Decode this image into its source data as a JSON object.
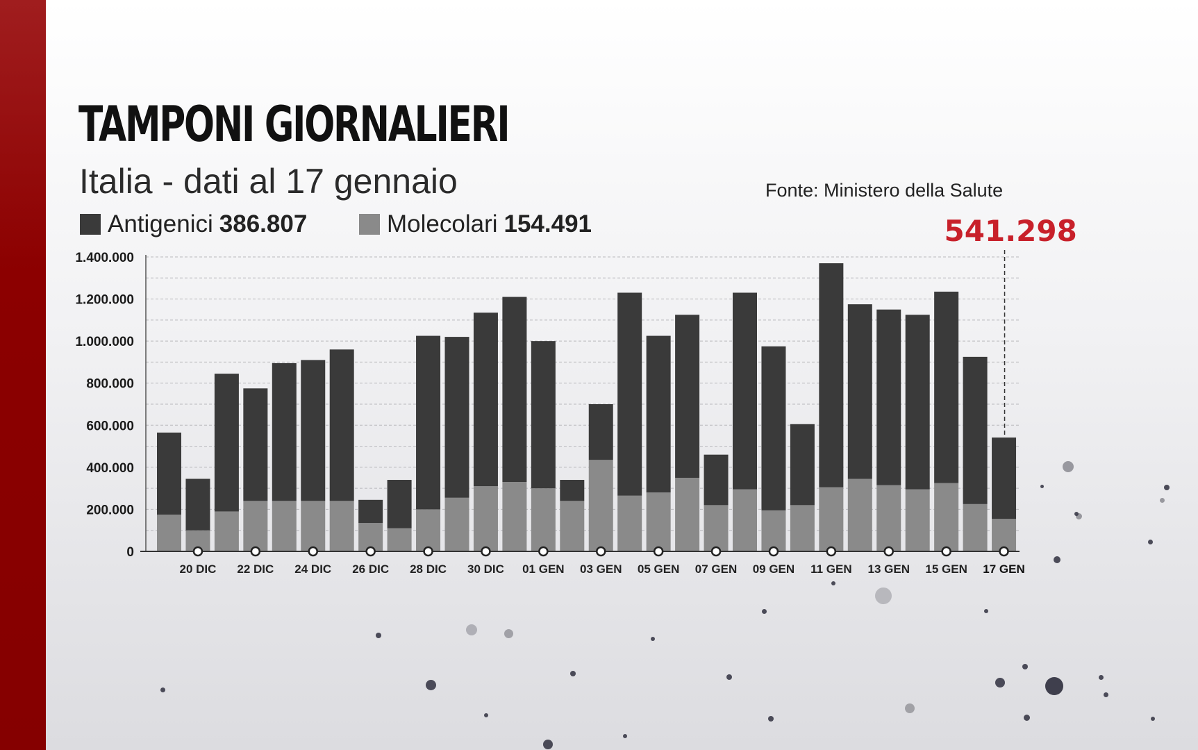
{
  "title": "TAMPONI GIORNALIERI",
  "subtitle": "Italia - dati al 17 gennaio",
  "source": "Fonte: Ministero della Salute",
  "highlight_total": "541.298",
  "legend": [
    {
      "label": "Antigenici",
      "value": "386.807",
      "color": "#3a3a3a"
    },
    {
      "label": "Molecolari",
      "value": "154.491",
      "color": "#8a8a8a"
    }
  ],
  "colors": {
    "accent": "#c8202a",
    "brand_red": "#8c0000",
    "antigenici": "#3a3a3a",
    "molecolari": "#8a8a8a"
  },
  "chart_data": {
    "type": "bar",
    "stacked": true,
    "title": "TAMPONI GIORNALIERI",
    "subtitle": "Italia - dati al 17 gennaio",
    "ylim": [
      0,
      1400000
    ],
    "ytick_values": [
      0,
      200000,
      400000,
      600000,
      800000,
      1000000,
      1200000,
      1400000
    ],
    "ytick_labels": [
      "0",
      "200.000",
      "400.000",
      "600.000",
      "800.000",
      "1.000.000",
      "1.200.000",
      "1.400.000"
    ],
    "xtick_labels": [
      "",
      "20 DIC",
      "",
      "22 DIC",
      "",
      "24 DIC",
      "",
      "26 DIC",
      "",
      "28 DIC",
      "",
      "30 DIC",
      "",
      "01 GEN",
      "",
      "03 GEN",
      "",
      "05 GEN",
      "",
      "07 GEN",
      "",
      "09 GEN",
      "",
      "11 GEN",
      "",
      "13 GEN",
      "",
      "15 GEN",
      "",
      "17 GEN"
    ],
    "categories": [
      "19 DIC",
      "20 DIC",
      "21 DIC",
      "22 DIC",
      "23 DIC",
      "24 DIC",
      "25 DIC",
      "26 DIC",
      "27 DIC",
      "28 DIC",
      "29 DIC",
      "30 DIC",
      "31 DIC",
      "01 GEN",
      "02 GEN",
      "03 GEN",
      "04 GEN",
      "05 GEN",
      "06 GEN",
      "07 GEN",
      "08 GEN",
      "09 GEN",
      "10 GEN",
      "11 GEN",
      "12 GEN",
      "13 GEN",
      "14 GEN",
      "15 GEN",
      "16 GEN",
      "17 GEN"
    ],
    "grid": true,
    "legend_position": "top-left",
    "series": [
      {
        "name": "Molecolari",
        "values": [
          175000,
          100000,
          190000,
          240000,
          240000,
          240000,
          240000,
          135000,
          110000,
          200000,
          255000,
          310000,
          330000,
          300000,
          240000,
          435000,
          265000,
          280000,
          350000,
          220000,
          295000,
          195000,
          220000,
          305000,
          345000,
          315000,
          295000,
          325000,
          225000,
          154491
        ]
      },
      {
        "name": "Antigenici",
        "values": [
          390000,
          245000,
          655000,
          535000,
          655000,
          670000,
          720000,
          110000,
          230000,
          825000,
          765000,
          825000,
          880000,
          700000,
          100000,
          265000,
          965000,
          745000,
          775000,
          240000,
          935000,
          780000,
          385000,
          1065000,
          830000,
          835000,
          830000,
          910000,
          700000,
          386807
        ]
      }
    ]
  }
}
